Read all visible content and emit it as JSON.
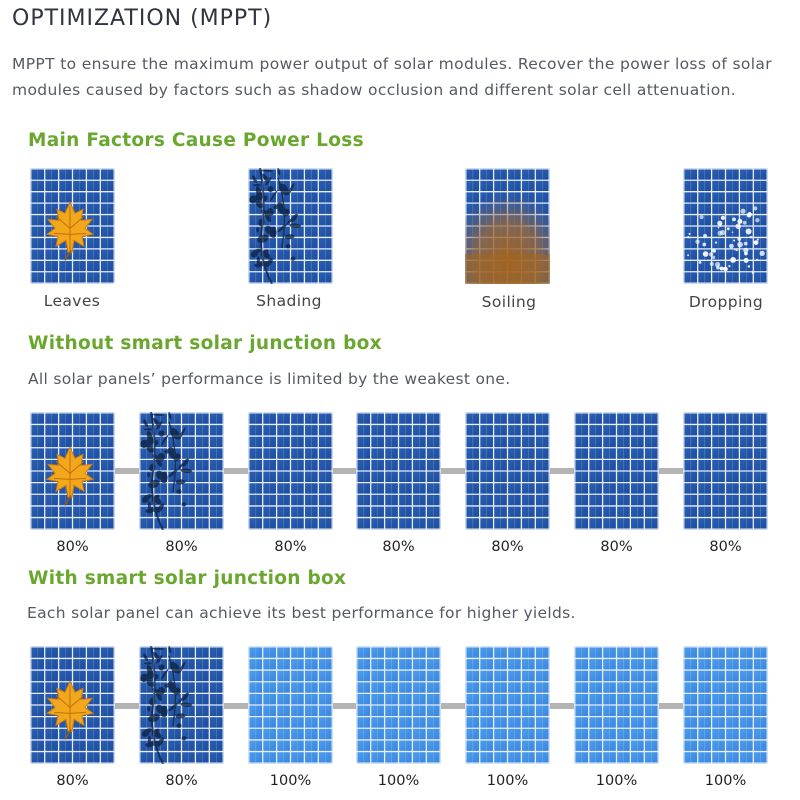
{
  "header": {
    "title": "OPTIMIZATION (MPPT)",
    "intro": "MPPT to ensure the maximum power output of solar modules. Recover the power loss of solar modules caused by factors such as shadow occlusion and different solar cell attenuation."
  },
  "factors": {
    "title": "Main Factors Cause Power Loss",
    "items": [
      {
        "label": "Leaves",
        "overlay": "leaf"
      },
      {
        "label": "Shading",
        "overlay": "shading"
      },
      {
        "label": "Soiling",
        "overlay": "soiling"
      },
      {
        "label": "Dropping",
        "overlay": "dropping"
      }
    ]
  },
  "without_box": {
    "title": "Without smart solar junction box",
    "desc": "All solar panels’ performance is limited by the weakest one.",
    "panels": [
      {
        "value": "80%",
        "overlay": "leaf",
        "tone": "dark"
      },
      {
        "value": "80%",
        "overlay": "shading",
        "tone": "dark"
      },
      {
        "value": "80%",
        "overlay": "none",
        "tone": "dark"
      },
      {
        "value": "80%",
        "overlay": "none",
        "tone": "dark"
      },
      {
        "value": "80%",
        "overlay": "none",
        "tone": "dark"
      },
      {
        "value": "80%",
        "overlay": "none",
        "tone": "dark"
      },
      {
        "value": "80%",
        "overlay": "none",
        "tone": "dark"
      }
    ]
  },
  "with_box": {
    "title": "With smart solar junction box",
    "desc": "Each solar panel can achieve its best performance for higher yields.",
    "panels": [
      {
        "value": "80%",
        "overlay": "leaf",
        "tone": "dark"
      },
      {
        "value": "80%",
        "overlay": "shading",
        "tone": "dark"
      },
      {
        "value": "100%",
        "overlay": "none",
        "tone": "light"
      },
      {
        "value": "100%",
        "overlay": "none",
        "tone": "light"
      },
      {
        "value": "100%",
        "overlay": "none",
        "tone": "light"
      },
      {
        "value": "100%",
        "overlay": "none",
        "tone": "light"
      },
      {
        "value": "100%",
        "overlay": "none",
        "tone": "light"
      }
    ]
  },
  "colors": {
    "heading": "#2f3440",
    "accent_green": "#6aa72f",
    "panel_dark": "#1f52a6",
    "panel_light": "#3d8fe4",
    "wire": "#b4b4b4"
  }
}
